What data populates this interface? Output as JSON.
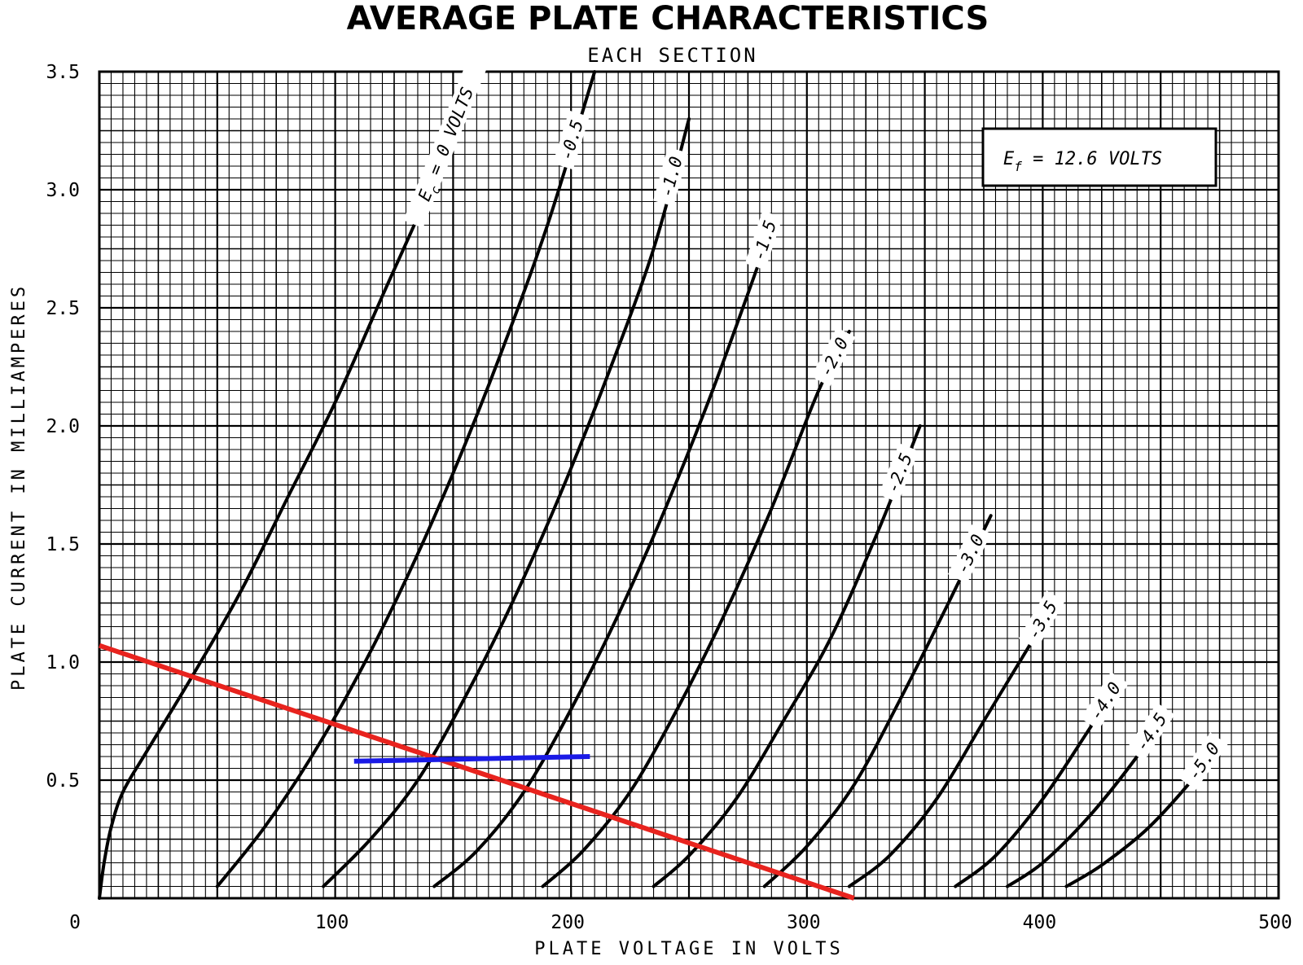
{
  "chart_data": {
    "type": "line",
    "title": "AVERAGE PLATE CHARACTERISTICS",
    "subtitle": "EACH SECTION",
    "xlabel": "PLATE VOLTAGE IN VOLTS",
    "ylabel": "PLATE CURRENT IN MILLIAMPERES",
    "xlim": [
      0,
      500
    ],
    "ylim": [
      0,
      3.5
    ],
    "xticks": [
      "0",
      "100",
      "200",
      "300",
      "400",
      "500"
    ],
    "yticks": [
      "0.5",
      "1.0",
      "1.5",
      "2.0",
      "2.5",
      "3.0",
      "3.5"
    ],
    "ytick_values": [
      0.5,
      1.0,
      1.5,
      2.0,
      2.5,
      3.0,
      3.5
    ],
    "xtick_values": [
      0,
      100,
      200,
      300,
      400,
      500
    ],
    "grid": true,
    "annotation_box": {
      "text": "E",
      "sub": "f",
      "rest": " = 12.6 VOLTS"
    },
    "series": [
      {
        "name": "0 VOLTS",
        "label_prefix": "E",
        "label_sub": "c",
        "label_rest": " = 0 VOLTS",
        "x": [
          0,
          2,
          5,
          10,
          20,
          40,
          60,
          80,
          100,
          120,
          140,
          160
        ],
        "y": [
          0,
          0.15,
          0.3,
          0.45,
          0.62,
          0.95,
          1.3,
          1.7,
          2.1,
          2.55,
          3.0,
          3.5
        ]
      },
      {
        "name": "-0.5",
        "x": [
          50,
          70,
          90,
          110,
          130,
          150,
          170,
          190,
          210
        ],
        "y": [
          0.05,
          0.3,
          0.6,
          0.95,
          1.35,
          1.8,
          2.3,
          2.85,
          3.5
        ]
      },
      {
        "name": "-1.0",
        "x": [
          95,
          115,
          135,
          155,
          175,
          195,
          215,
          235,
          250
        ],
        "y": [
          0.05,
          0.25,
          0.5,
          0.85,
          1.25,
          1.7,
          2.2,
          2.75,
          3.3
        ]
      },
      {
        "name": "-1.5",
        "x": [
          142,
          160,
          180,
          200,
          220,
          240,
          260,
          280,
          285
        ],
        "y": [
          0.05,
          0.2,
          0.45,
          0.8,
          1.2,
          1.65,
          2.15,
          2.7,
          2.85
        ]
      },
      {
        "name": "-2.0",
        "x": [
          188,
          205,
          225,
          245,
          265,
          285,
          305,
          318
        ],
        "y": [
          0.05,
          0.2,
          0.45,
          0.8,
          1.2,
          1.65,
          2.15,
          2.4
        ]
      },
      {
        "name": "-2.5",
        "x": [
          235,
          250,
          270,
          290,
          310,
          330,
          348
        ],
        "y": [
          0.05,
          0.18,
          0.42,
          0.75,
          1.1,
          1.55,
          2.0
        ]
      },
      {
        "name": "-3.0",
        "x": [
          282,
          300,
          320,
          340,
          360,
          378
        ],
        "y": [
          0.05,
          0.22,
          0.48,
          0.85,
          1.25,
          1.62
        ]
      },
      {
        "name": "-3.5",
        "x": [
          318,
          335,
          355,
          375,
          395,
          405
        ],
        "y": [
          0.05,
          0.18,
          0.42,
          0.75,
          1.08,
          1.25
        ]
      },
      {
        "name": "-4.0",
        "x": [
          363,
          380,
          400,
          420,
          433
        ],
        "y": [
          0.05,
          0.18,
          0.42,
          0.72,
          0.92
        ]
      },
      {
        "name": "-4.5",
        "x": [
          385,
          400,
          420,
          440,
          452
        ],
        "y": [
          0.05,
          0.15,
          0.35,
          0.6,
          0.78
        ]
      },
      {
        "name": "-5.0",
        "x": [
          410,
          425,
          445,
          465,
          472
        ],
        "y": [
          0.05,
          0.14,
          0.3,
          0.52,
          0.62
        ]
      }
    ],
    "overlays": [
      {
        "kind": "load-line",
        "color": "#e8231e",
        "x": [
          0,
          320
        ],
        "y": [
          1.07,
          0.0
        ]
      },
      {
        "kind": "horizontal-segment",
        "color": "#1a1ae6",
        "x": [
          108,
          208
        ],
        "y": [
          0.58,
          0.6
        ]
      }
    ]
  }
}
